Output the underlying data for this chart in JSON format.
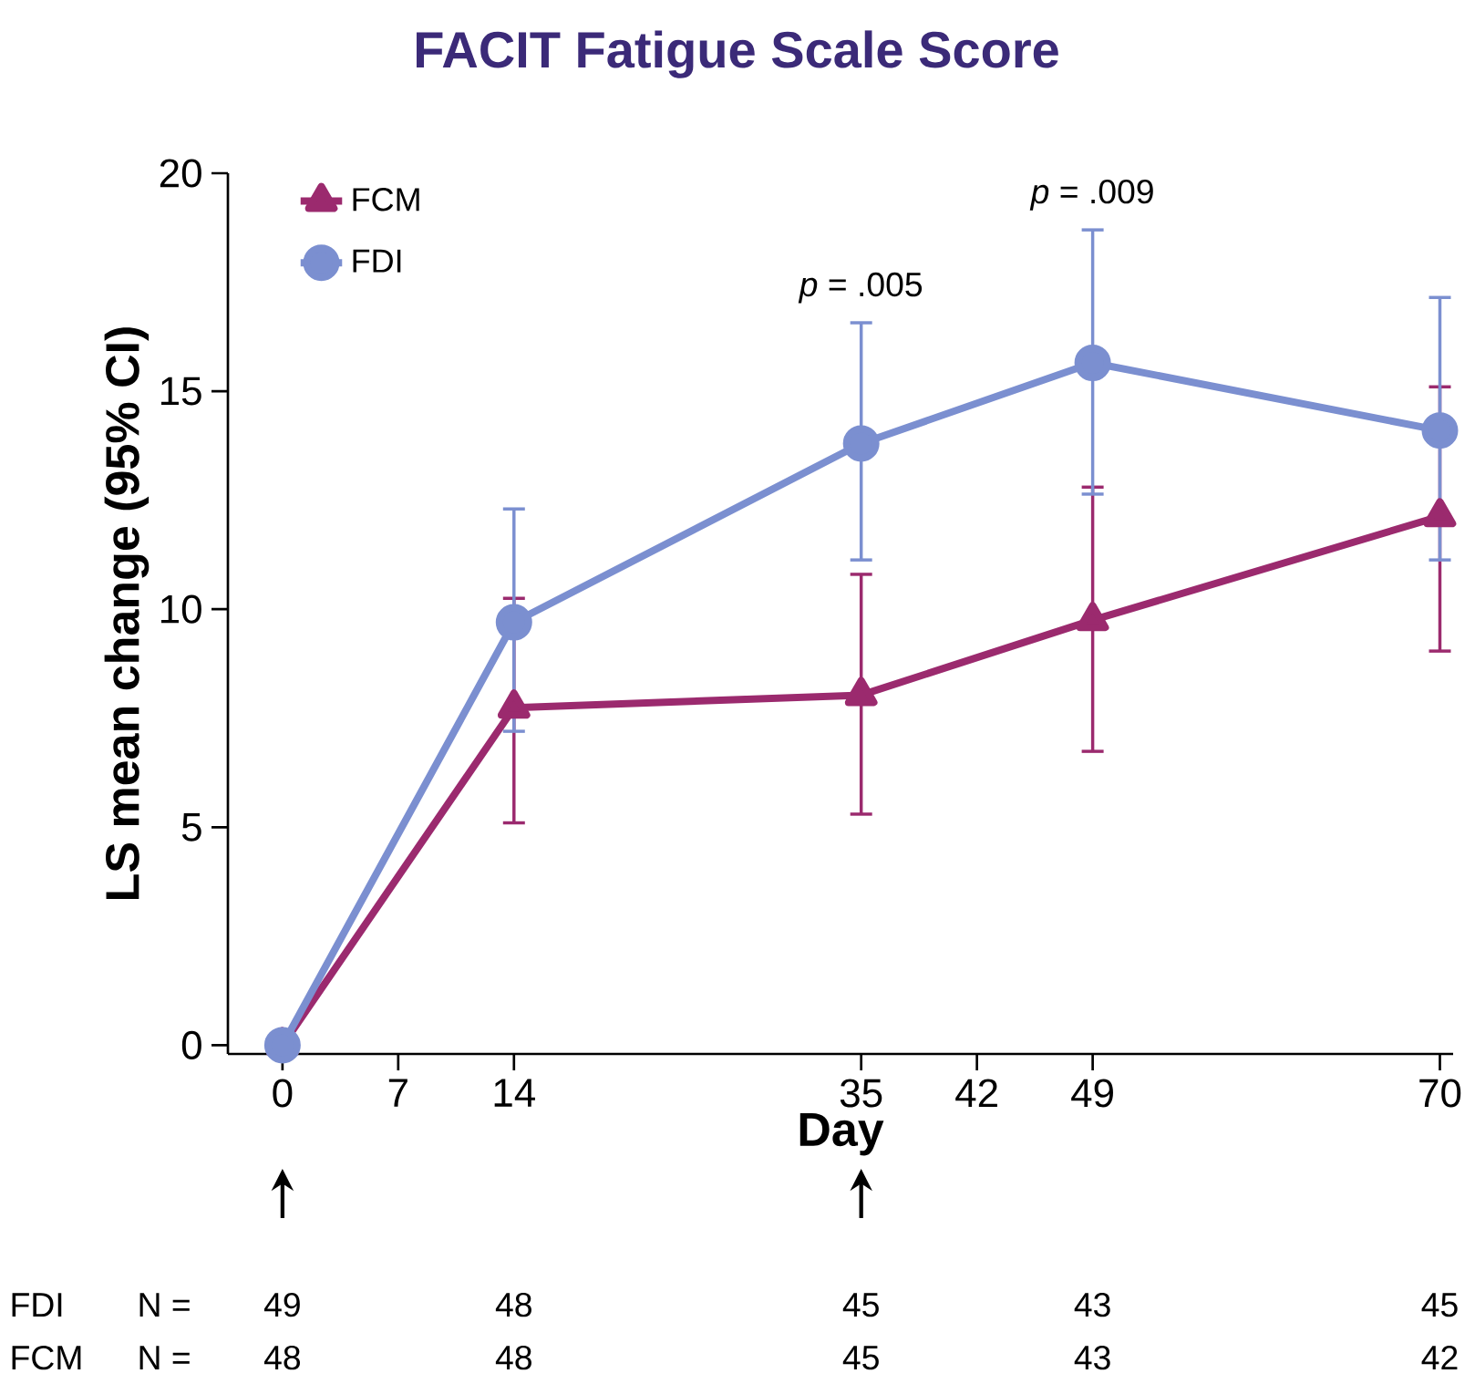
{
  "chart_data": {
    "type": "line",
    "title": "FACIT Fatigue Scale Score",
    "xlabel": "Day",
    "ylabel": "LS mean change (95% CI)",
    "x": [
      0,
      14,
      35,
      49,
      70
    ],
    "series": [
      {
        "name": "FCM",
        "color": "#9b2a6e",
        "marker": "triangle",
        "values": [
          0,
          7.74,
          8.03,
          9.75,
          12.13
        ],
        "errors": [
          null,
          [
            5.1,
            10.25
          ],
          [
            5.3,
            10.8
          ],
          [
            6.74,
            12.8
          ],
          [
            9.04,
            15.1
          ]
        ]
      },
      {
        "name": "FDI",
        "color": "#7b8fd0",
        "marker": "circle",
        "values": [
          0,
          9.7,
          13.8,
          15.65,
          14.1
        ],
        "errors": [
          null,
          [
            7.2,
            12.3
          ],
          [
            11.13,
            16.57
          ],
          [
            12.64,
            18.7
          ],
          [
            11.13,
            17.15
          ]
        ]
      }
    ],
    "xlim": [
      -3.3,
      70.8
    ],
    "ylim": [
      -0.2,
      20
    ],
    "xticks": [
      0,
      7,
      14,
      35,
      42,
      49,
      70
    ],
    "yticks": [
      0,
      5,
      10,
      15,
      20
    ],
    "grid": false,
    "legend": "top left",
    "line_style": "solid",
    "annotations": [
      "*p* = .005",
      "*p* = .009",
      "FDI",
      "N =",
      "49",
      "48",
      "45",
      "43",
      "45",
      "FCM",
      "N =",
      "48",
      "48",
      "45",
      "43",
      "42"
    ]
  }
}
